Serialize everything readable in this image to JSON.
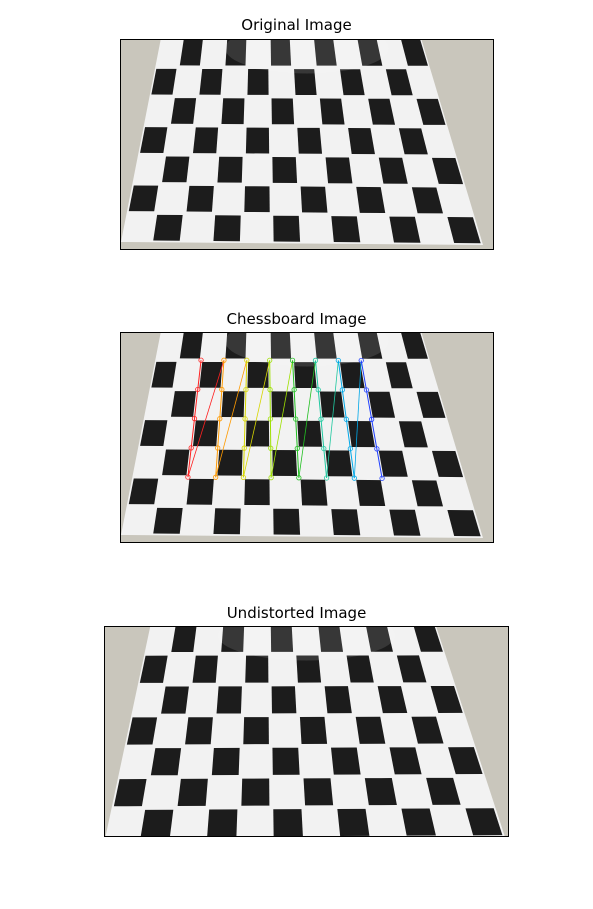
{
  "panels": [
    {
      "title": "Original Image"
    },
    {
      "title": "Chessboard Image"
    },
    {
      "title": "Undistorted Image"
    }
  ],
  "colors": {
    "wall": "#c9c6bc",
    "paper": "#f2f2f2",
    "square": "#1c1c1c",
    "corner_lines": [
      "#ff2020",
      "#ff9a00",
      "#d6d600",
      "#9ee000",
      "#22c022",
      "#20c8a0",
      "#00a8e8",
      "#2040ff"
    ]
  }
}
